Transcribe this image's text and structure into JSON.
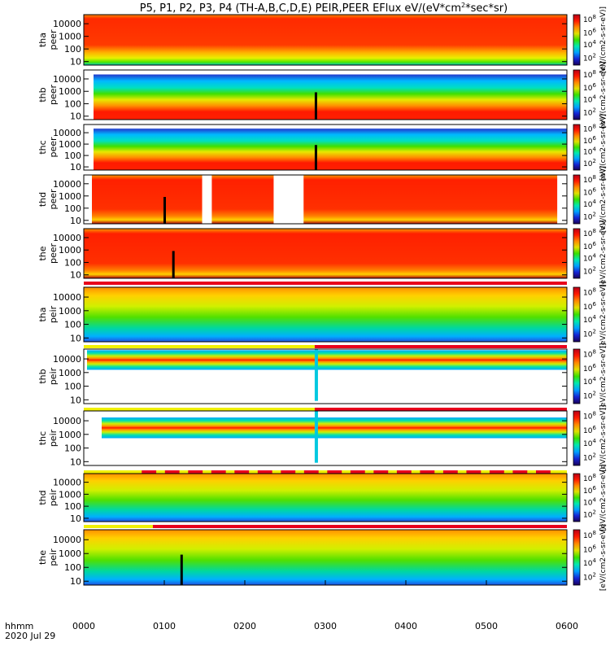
{
  "chart_data": {
    "type": "heatmap",
    "title": "P5, P1, P2, P3, P4 (TH-A,B,C,D,E) PEIR,PEER EFlux eV/(eV*cm2*sec*sr)",
    "title_plain": "P5, P1, P2, P3, P4 (TH-A,B,C,D,E) PEIR,PEER EFlux eV/(eV*cm",
    "title_sup": "2",
    "title_end": "*sec*sr)",
    "xlabel_top": "hhmm",
    "xlabel_bottom": "2020 Jul 29",
    "x_ticks": [
      "0000",
      "0100",
      "0200",
      "0300",
      "0400",
      "0500",
      "0600"
    ],
    "y_ticks": [
      "10",
      "100",
      "1000",
      "10000"
    ],
    "colorbar_ticks": [
      "10",
      "10",
      "10",
      "10"
    ],
    "colorbar_exps": [
      "2",
      "4",
      "6",
      "8"
    ],
    "colorbar_label": "[eV/(cm2-s-sr-eV)]",
    "colors": {
      "background": "#ffffff",
      "status_bar_red": "#e8001c",
      "status_bar_yellow": "#f0f000",
      "data_gap": "#ffffff",
      "colorbar": [
        "#1a0059",
        "#1525d6",
        "#00a0ff",
        "#00e8b0",
        "#38e000",
        "#e0e000",
        "#ff8800",
        "#ff1a00",
        "#b80018"
      ]
    },
    "panels": [
      {
        "probe": "tha",
        "species": "peer",
        "label_top": "tha",
        "label_bottom": "peer"
      },
      {
        "probe": "thb",
        "species": "peer",
        "label_top": "thb",
        "label_bottom": "peer"
      },
      {
        "probe": "thc",
        "species": "peer",
        "label_top": "thc",
        "label_bottom": "peer"
      },
      {
        "probe": "thd",
        "species": "peer",
        "label_top": "thd",
        "label_bottom": "peer"
      },
      {
        "probe": "the",
        "species": "peer",
        "label_top": "the",
        "label_bottom": "peer"
      },
      {
        "probe": "tha",
        "species": "peir",
        "label_top": "tha",
        "label_bottom": "peir"
      },
      {
        "probe": "thb",
        "species": "peir",
        "label_top": "thb",
        "label_bottom": "peir"
      },
      {
        "probe": "thc",
        "species": "peir",
        "label_top": "thc",
        "label_bottom": "peir"
      },
      {
        "probe": "thd",
        "species": "peir",
        "label_top": "thd",
        "label_bottom": "peir"
      },
      {
        "probe": "the",
        "species": "peir",
        "label_top": "the",
        "label_bottom": "peir"
      }
    ]
  }
}
